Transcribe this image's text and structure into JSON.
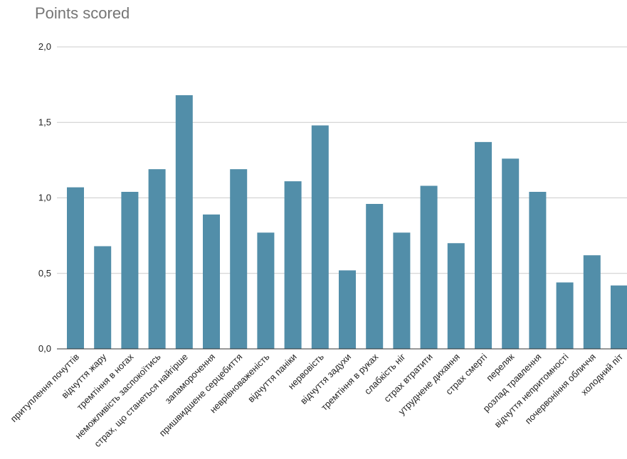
{
  "chart_data": {
    "type": "bar",
    "title": "Points scored",
    "xlabel": "",
    "ylabel": "",
    "ylim": [
      0,
      2.0
    ],
    "yticks": [
      "0,0",
      "0,5",
      "1,0",
      "1,5",
      "2,0"
    ],
    "grid": true,
    "legend": "none",
    "bar_color": "#528ea9",
    "categories": [
      "притуплення почуттів",
      "відчуття жару",
      "тремтіння в ногах",
      "неможливість заспокоїтись",
      "страх, що станеться найгірше",
      "запаморочення",
      "пришвидшене серцебиття",
      "неврівноваженість",
      "відчуття паніки",
      "нервовість",
      "відчуття задухи",
      "тремтіння в руках",
      "слабкість ніг",
      "страх втратити",
      "утруднене дихання",
      "страх смерті",
      "переляк",
      "розлад травлення",
      "відчуття непритомності",
      "почервоніння обличчя",
      "холодний піт"
    ],
    "values": [
      1.07,
      0.68,
      1.04,
      1.19,
      1.68,
      0.89,
      1.19,
      0.77,
      1.11,
      1.48,
      0.52,
      0.96,
      0.77,
      1.08,
      0.7,
      1.37,
      1.26,
      1.04,
      0.44,
      0.62,
      0.42
    ]
  }
}
